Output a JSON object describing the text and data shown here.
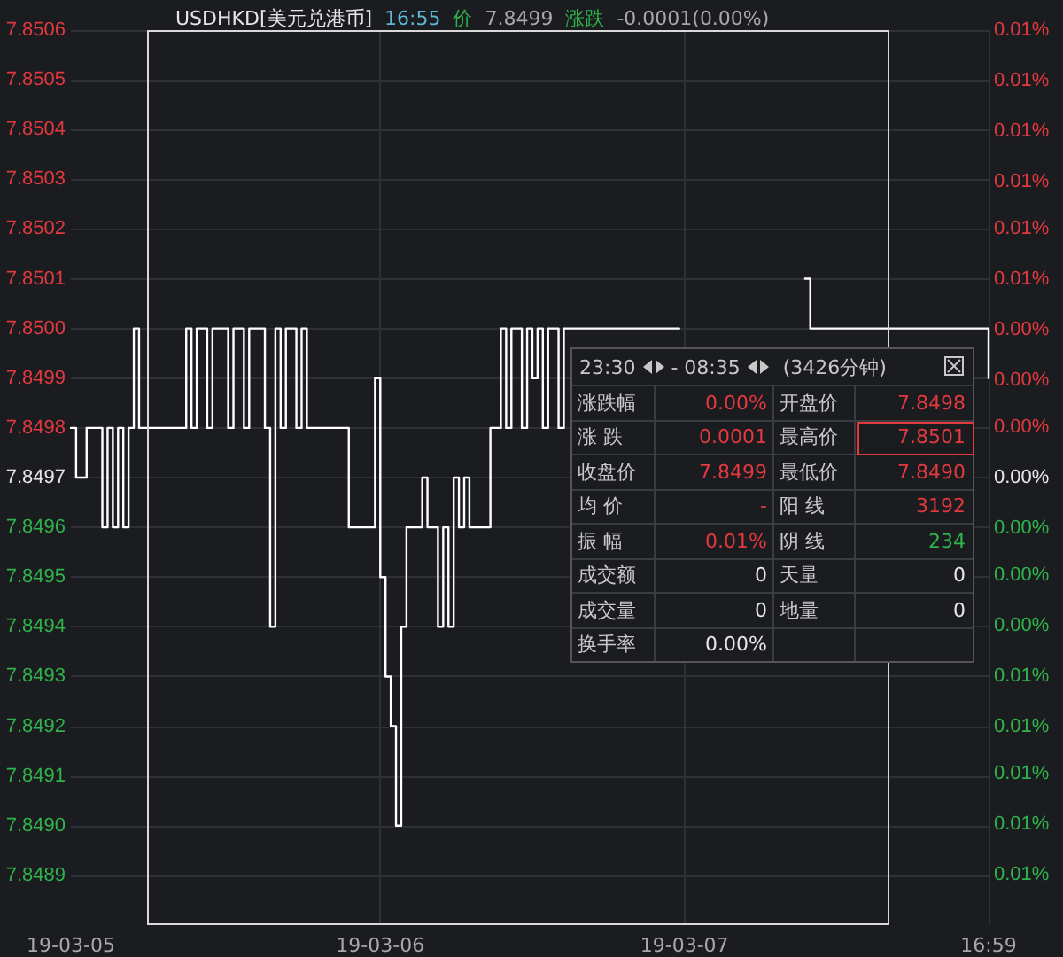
{
  "chart_data": {
    "type": "step",
    "title": "USDHKD[美元兑港币]",
    "subtitle": "16:55 价 7.8499 涨跌 -0.0001(0.00%)",
    "categories": [
      "19-03-05",
      null,
      null,
      null,
      null,
      null,
      null,
      null,
      null,
      null,
      null,
      null,
      null,
      null,
      null,
      null,
      null,
      null,
      null,
      null,
      null,
      null,
      null,
      null,
      null,
      null,
      null,
      null,
      null,
      null,
      null,
      null,
      null,
      null,
      null,
      null,
      null,
      null,
      null,
      null,
      null,
      null,
      null,
      null,
      null,
      null,
      null,
      null,
      null,
      null,
      null,
      null,
      null,
      null,
      null,
      null,
      null,
      null,
      null,
      "19-03-06",
      null,
      null,
      null,
      null,
      null,
      null,
      null,
      null,
      null,
      null,
      null,
      null,
      null,
      null,
      null,
      null,
      null,
      null,
      null,
      null,
      null,
      null,
      null,
      null,
      null,
      null,
      null,
      null,
      null,
      null,
      null,
      null,
      null,
      null,
      null,
      null,
      null,
      null,
      null,
      null,
      null,
      null,
      null,
      null,
      null,
      null,
      null,
      null,
      null,
      null,
      null,
      null,
      null,
      null,
      null,
      null,
      null,
      "19-03-07",
      null,
      null,
      null,
      null,
      null,
      null,
      null,
      null,
      null,
      null,
      null,
      null,
      null,
      null,
      null,
      null,
      null,
      null,
      null,
      null,
      null,
      null,
      null,
      null,
      null,
      null,
      null,
      null,
      null,
      null,
      null,
      null,
      null,
      null,
      null,
      null,
      null,
      null,
      null,
      null,
      null,
      null,
      null,
      null,
      null,
      null,
      null,
      null,
      null,
      null,
      null,
      null,
      null,
      null,
      null,
      null,
      null,
      "16:59"
    ],
    "series": [
      {
        "color": "#ffffff",
        "values": [
          7.8498,
          7.8497,
          7.8497,
          7.8498,
          7.8498,
          7.8498,
          7.8496,
          7.8498,
          7.8496,
          7.8498,
          7.8496,
          7.8498,
          7.85,
          7.8498,
          7.8498,
          7.8498,
          7.8498,
          7.8498,
          7.8498,
          7.8498,
          7.8498,
          7.8498,
          7.85,
          7.8498,
          7.85,
          7.85,
          7.8498,
          7.85,
          7.85,
          7.85,
          7.8498,
          7.85,
          7.85,
          7.8498,
          7.85,
          7.85,
          7.85,
          7.8498,
          7.8494,
          7.85,
          7.8498,
          7.85,
          7.85,
          7.8498,
          7.85,
          7.8498,
          7.8498,
          7.8498,
          7.8498,
          7.8498,
          7.8498,
          7.8498,
          7.8498,
          7.8496,
          7.8496,
          7.8496,
          7.8496,
          7.8496,
          7.8499,
          7.8495,
          7.8493,
          7.8492,
          7.849,
          7.8494,
          7.8496,
          7.8496,
          7.8496,
          7.8497,
          7.8496,
          7.8496,
          7.8494,
          7.8496,
          7.8494,
          7.8497,
          7.8496,
          7.8497,
          7.8496,
          7.8496,
          7.8496,
          7.8496,
          7.8498,
          7.8498,
          7.85,
          7.8498,
          7.85,
          7.85,
          7.8498,
          7.85,
          7.8499,
          7.85,
          7.8498,
          7.85,
          7.85,
          7.8498,
          7.85,
          7.85,
          7.85,
          7.85,
          7.85,
          7.85,
          7.85,
          7.85,
          7.85,
          7.85,
          7.85,
          7.85,
          7.85,
          7.85,
          7.85,
          7.85,
          7.85,
          7.85,
          7.85,
          7.85,
          7.85,
          7.85,
          null,
          null,
          null,
          null,
          null,
          null,
          null,
          null,
          null,
          null,
          null,
          null,
          null,
          null,
          null,
          null,
          null,
          null,
          null,
          null,
          null,
          null,
          null,
          null,
          7.8501,
          7.85,
          7.85,
          7.85,
          7.85,
          7.85,
          7.85,
          7.85,
          7.85,
          7.85,
          7.85,
          7.85,
          7.85,
          7.85,
          7.85,
          7.85,
          7.85,
          7.85,
          7.85,
          7.85,
          7.85,
          7.85,
          7.85,
          7.85,
          7.85,
          7.85,
          7.85,
          7.85,
          7.85,
          7.85,
          7.85,
          7.85,
          7.85,
          7.85,
          7.85,
          7.8499
        ]
      }
    ],
    "ylim": [
      7.8488,
      7.8506
    ],
    "yticks": [
      {
        "value": 7.8489,
        "label": "7.8489"
      },
      {
        "value": 7.849,
        "label": "7.8490"
      },
      {
        "value": 7.8491,
        "label": "7.8491"
      },
      {
        "value": 7.8492,
        "label": "7.8492"
      },
      {
        "value": 7.8493,
        "label": "7.8493"
      },
      {
        "value": 7.8494,
        "label": "7.8494"
      },
      {
        "value": 7.8495,
        "label": "7.8495"
      },
      {
        "value": 7.8496,
        "label": "7.8496"
      },
      {
        "value": 7.8497,
        "label": "7.8497"
      },
      {
        "value": 7.8498,
        "label": "7.8498"
      },
      {
        "value": 7.8499,
        "label": "7.8499"
      },
      {
        "value": 7.85,
        "label": "7.8500"
      },
      {
        "value": 7.8501,
        "label": "7.8501"
      },
      {
        "value": 7.8502,
        "label": "7.8502"
      },
      {
        "value": 7.8503,
        "label": "7.8503"
      },
      {
        "value": 7.8504,
        "label": "7.8504"
      },
      {
        "value": 7.8505,
        "label": "7.8505"
      },
      {
        "value": 7.8506,
        "label": "7.8506"
      }
    ],
    "y2lim": [
      -0.0115,
      0.0115
    ],
    "y2ticks": [
      {
        "value": -0.0102,
        "label": "0.01%"
      },
      {
        "value": -0.0089,
        "label": "0.01%"
      },
      {
        "value": -0.0076,
        "label": "0.01%"
      },
      {
        "value": -0.0064,
        "label": "0.01%"
      },
      {
        "value": -0.0051,
        "label": "0.01%"
      },
      {
        "value": -0.0038,
        "label": "0.00%"
      },
      {
        "value": -0.0025,
        "label": "0.00%"
      },
      {
        "value": -0.0013,
        "label": "0.00%"
      },
      {
        "value": 0,
        "label": "0.00%"
      },
      {
        "value": 0.0013,
        "label": "0.00%"
      },
      {
        "value": 0.0025,
        "label": "0.00%"
      },
      {
        "value": 0.0038,
        "label": "0.00%"
      },
      {
        "value": 0.0051,
        "label": "0.01%"
      },
      {
        "value": 0.0064,
        "label": "0.01%"
      },
      {
        "value": 0.0076,
        "label": "0.01%"
      },
      {
        "value": 0.0089,
        "label": "0.01%"
      },
      {
        "value": 0.0102,
        "label": "0.01%"
      },
      {
        "value": 0.0115,
        "label": "0.01%"
      }
    ],
    "grid": true,
    "marker": "none",
    "annotations": [
      "23:30",
      "- 08:35",
      "(3426分钟)",
      "涨跌幅",
      "0.00%",
      "开盘价",
      "7.8498",
      "涨 跌",
      "0.0001",
      "最高价",
      "7.8501",
      "收盘价",
      "7.8499",
      "最低价",
      "7.8490",
      "均 价",
      "-",
      "阳 线",
      "3192",
      "振 幅",
      "0.01%",
      "阴 线",
      "234",
      "成交额",
      "0",
      "天量",
      "0",
      "成交量",
      "0",
      "地量",
      "0",
      "换手率",
      "0.00%"
    ]
  }
}
